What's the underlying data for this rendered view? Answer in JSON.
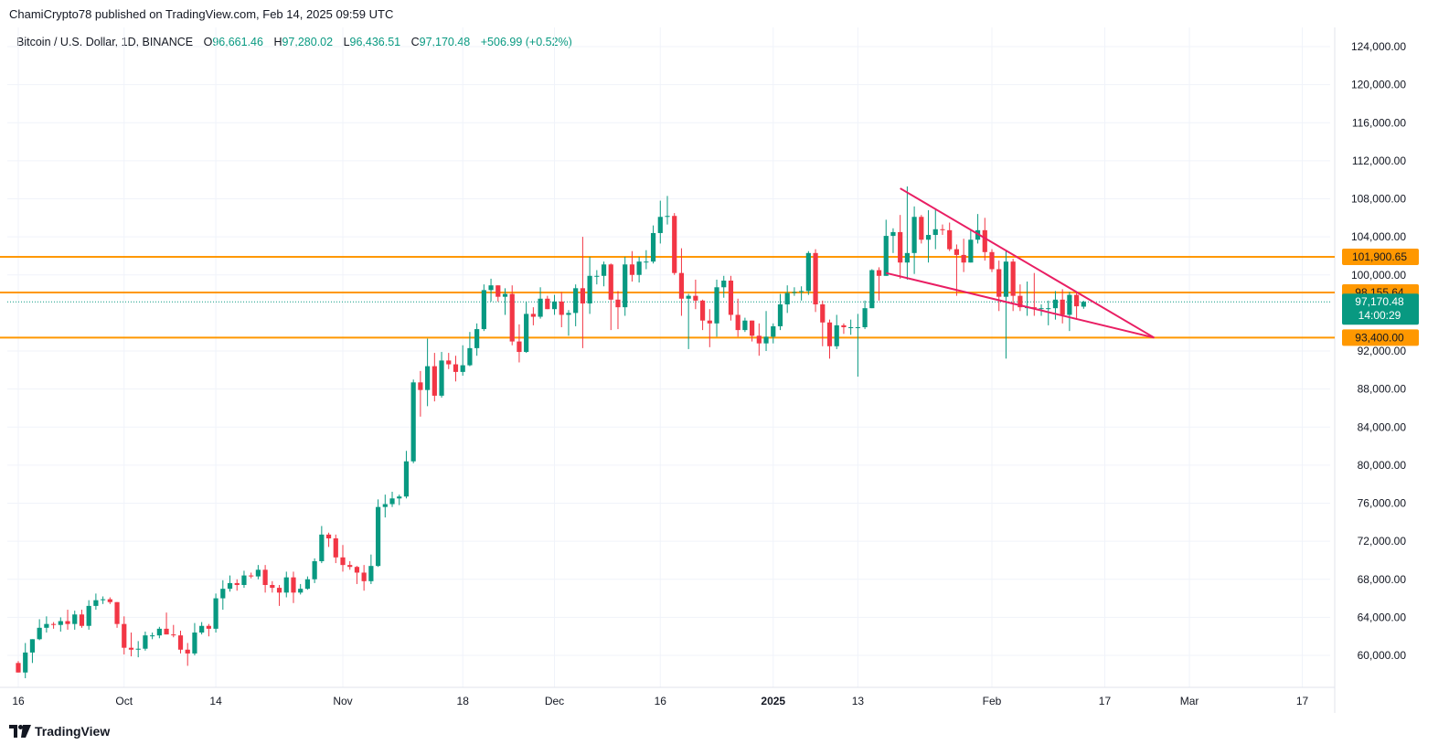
{
  "header": {
    "text": "ChamiCrypto78 published on TradingView.com, Feb 14, 2025 09:59 UTC"
  },
  "legend": {
    "symbol": "Bitcoin / U.S. Dollar, 1D, BINANCE",
    "o_label": "O",
    "o_value": "96,661.46",
    "h_label": "H",
    "h_value": "97,280.02",
    "l_label": "L",
    "l_value": "96,436.51",
    "c_label": "C",
    "c_value": "97,170.48",
    "change": "+506.99 (+0.52%)"
  },
  "footer": {
    "brand": "TradingView",
    "logo_icon": "tradingview-logo-icon"
  },
  "colors": {
    "up": "#089981",
    "down": "#f23645",
    "level": "#ff9800",
    "trend": "#e91e63",
    "text": "#131722"
  },
  "chart_data": {
    "type": "candlestick",
    "symbol": "BTCUSD",
    "timeframe": "1D",
    "ylim": [
      57000,
      126000
    ],
    "y_ticks": [
      "124,000.00",
      "120,000.00",
      "116,000.00",
      "112,000.00",
      "108,000.00",
      "104,000.00",
      "100,000.00",
      "92,000.00",
      "88,000.00",
      "84,000.00",
      "80,000.00",
      "76,000.00",
      "72,000.00",
      "68,000.00",
      "64,000.00",
      "60,000.00"
    ],
    "x_ticks": [
      "16",
      "Oct",
      "14",
      "Nov",
      "18",
      "Dec",
      "16",
      "2025",
      "13",
      "Feb",
      "17",
      "Mar",
      "17"
    ],
    "x_range": [
      "2024-09-16",
      "2025-03-19"
    ],
    "date_x_ticks": [
      "2024-09-16",
      "2024-10-01",
      "2024-10-14",
      "2024-11-01",
      "2024-11-18",
      "2024-12-01",
      "2024-12-16",
      "2025-01-01",
      "2025-01-13",
      "2025-02-01",
      "2025-02-17",
      "2025-03-01",
      "2025-03-17"
    ],
    "horizontal_levels": [
      {
        "value": 101900.65,
        "label": "101,900.65"
      },
      {
        "value": 98155.64,
        "label": "98,155.64"
      },
      {
        "value": 93400.0,
        "label": "93,400.00"
      }
    ],
    "last_price": {
      "value": 97170.48,
      "label": "97,170.48",
      "countdown": "14:00:29"
    },
    "trendlines": [
      {
        "from": [
          "2025-01-19",
          109100
        ],
        "to": [
          "2025-02-24",
          93400
        ]
      },
      {
        "from": [
          "2025-01-17",
          100200
        ],
        "to": [
          "2025-02-24",
          93400
        ]
      }
    ],
    "candles": [
      [
        "2024-09-16",
        59200,
        59400,
        58200,
        58200
      ],
      [
        "2024-09-17",
        58200,
        61300,
        57600,
        60300
      ],
      [
        "2024-09-18",
        60300,
        61700,
        59200,
        61700
      ],
      [
        "2024-09-19",
        61700,
        63800,
        61600,
        62900
      ],
      [
        "2024-09-20",
        62900,
        64100,
        62400,
        63300
      ],
      [
        "2024-09-21",
        63300,
        63500,
        62800,
        63200
      ],
      [
        "2024-09-22",
        63200,
        64000,
        62500,
        63600
      ],
      [
        "2024-09-23",
        63600,
        64800,
        62700,
        63300
      ],
      [
        "2024-09-24",
        63300,
        64700,
        62700,
        64300
      ],
      [
        "2024-09-25",
        64300,
        64800,
        62900,
        63100
      ],
      [
        "2024-09-26",
        63100,
        65800,
        62700,
        65200
      ],
      [
        "2024-09-27",
        65200,
        66500,
        64800,
        65800
      ],
      [
        "2024-09-28",
        65800,
        66200,
        65400,
        65900
      ],
      [
        "2024-09-29",
        65900,
        66100,
        65400,
        65600
      ],
      [
        "2024-09-30",
        65600,
        65600,
        62900,
        63300
      ],
      [
        "2024-10-01",
        63300,
        64100,
        60100,
        60800
      ],
      [
        "2024-10-02",
        60800,
        62400,
        59900,
        60600
      ],
      [
        "2024-10-03",
        60600,
        61500,
        59800,
        60700
      ],
      [
        "2024-10-04",
        60700,
        62500,
        60500,
        62100
      ],
      [
        "2024-10-05",
        62100,
        62400,
        61700,
        62100
      ],
      [
        "2024-10-06",
        62100,
        63000,
        61800,
        62800
      ],
      [
        "2024-10-07",
        62800,
        64500,
        62200,
        62200
      ],
      [
        "2024-10-08",
        62200,
        63200,
        61900,
        62100
      ],
      [
        "2024-10-09",
        62100,
        62600,
        60200,
        60600
      ],
      [
        "2024-10-10",
        60600,
        61300,
        58900,
        60200
      ],
      [
        "2024-10-11",
        60200,
        63400,
        60000,
        62400
      ],
      [
        "2024-10-12",
        62400,
        63500,
        62200,
        63100
      ],
      [
        "2024-10-13",
        63100,
        63300,
        62000,
        62800
      ],
      [
        "2024-10-14",
        62800,
        66500,
        62400,
        66000
      ],
      [
        "2024-10-15",
        66000,
        67900,
        64800,
        67000
      ],
      [
        "2024-10-16",
        67000,
        68400,
        66700,
        67600
      ],
      [
        "2024-10-17",
        67600,
        68000,
        66800,
        67400
      ],
      [
        "2024-10-18",
        67400,
        68900,
        67100,
        68400
      ],
      [
        "2024-10-19",
        68400,
        68700,
        68100,
        68300
      ],
      [
        "2024-10-20",
        68300,
        69500,
        68000,
        69000
      ],
      [
        "2024-10-21",
        69000,
        69500,
        66600,
        67400
      ],
      [
        "2024-10-22",
        67400,
        67800,
        66600,
        67100
      ],
      [
        "2024-10-23",
        67100,
        67400,
        65200,
        66600
      ],
      [
        "2024-10-24",
        66600,
        68800,
        66100,
        68200
      ],
      [
        "2024-10-25",
        68200,
        68800,
        65500,
        66600
      ],
      [
        "2024-10-26",
        66600,
        67500,
        66400,
        67000
      ],
      [
        "2024-10-27",
        67000,
        68300,
        66900,
        68000
      ],
      [
        "2024-10-28",
        68000,
        70200,
        67600,
        69900
      ],
      [
        "2024-10-29",
        69900,
        73600,
        69700,
        72700
      ],
      [
        "2024-10-30",
        72700,
        72900,
        71400,
        72300
      ],
      [
        "2024-10-31",
        72300,
        72700,
        69700,
        70300
      ],
      [
        "2024-11-01",
        70300,
        71600,
        68800,
        69500
      ],
      [
        "2024-11-02",
        69500,
        69900,
        69000,
        69300
      ],
      [
        "2024-11-03",
        69300,
        69400,
        67500,
        68700
      ],
      [
        "2024-11-04",
        68700,
        69500,
        66800,
        67800
      ],
      [
        "2024-11-05",
        67800,
        70600,
        67500,
        69400
      ],
      [
        "2024-11-06",
        69400,
        76400,
        69300,
        75600
      ],
      [
        "2024-11-07",
        75600,
        76900,
        74500,
        75900
      ],
      [
        "2024-11-08",
        75900,
        77200,
        75600,
        76500
      ],
      [
        "2024-11-09",
        76500,
        76900,
        75800,
        76700
      ],
      [
        "2024-11-10",
        76700,
        81500,
        76500,
        80400
      ],
      [
        "2024-11-11",
        80400,
        89000,
        80200,
        88700
      ],
      [
        "2024-11-12",
        88700,
        89900,
        85100,
        87900
      ],
      [
        "2024-11-13",
        87900,
        93300,
        86200,
        90400
      ],
      [
        "2024-11-14",
        90400,
        91800,
        86700,
        87300
      ],
      [
        "2024-11-15",
        87300,
        91900,
        87100,
        91000
      ],
      [
        "2024-11-16",
        91000,
        91800,
        90100,
        90600
      ],
      [
        "2024-11-17",
        90600,
        91500,
        88800,
        89800
      ],
      [
        "2024-11-18",
        89800,
        92600,
        89400,
        90500
      ],
      [
        "2024-11-19",
        90500,
        94000,
        90400,
        92300
      ],
      [
        "2024-11-20",
        92300,
        94900,
        91500,
        94300
      ],
      [
        "2024-11-21",
        94300,
        99000,
        94100,
        98400
      ],
      [
        "2024-11-22",
        98400,
        99600,
        97200,
        98900
      ],
      [
        "2024-11-23",
        98900,
        98900,
        97200,
        97700
      ],
      [
        "2024-11-24",
        97700,
        98600,
        95800,
        98000
      ],
      [
        "2024-11-25",
        98000,
        98900,
        92600,
        93000
      ],
      [
        "2024-11-26",
        93000,
        94800,
        90800,
        91900
      ],
      [
        "2024-11-27",
        91900,
        97200,
        91800,
        95900
      ],
      [
        "2024-11-28",
        95900,
        96600,
        94700,
        95600
      ],
      [
        "2024-11-29",
        95600,
        98700,
        95400,
        97500
      ],
      [
        "2024-11-30",
        97500,
        97800,
        96400,
        96400
      ],
      [
        "2024-12-01",
        96400,
        97900,
        95800,
        97200
      ],
      [
        "2024-12-02",
        97200,
        98200,
        94500,
        95800
      ],
      [
        "2024-12-03",
        95800,
        96300,
        93600,
        96000
      ],
      [
        "2024-12-04",
        96000,
        99000,
        94600,
        98600
      ],
      [
        "2024-12-05",
        98600,
        104000,
        92300,
        97000
      ],
      [
        "2024-12-06",
        97000,
        101900,
        95900,
        99900
      ],
      [
        "2024-12-07",
        99900,
        100500,
        99000,
        99900
      ],
      [
        "2024-12-08",
        99900,
        101400,
        98800,
        101100
      ],
      [
        "2024-12-09",
        101100,
        101200,
        94200,
        97400
      ],
      [
        "2024-12-10",
        97400,
        98300,
        94300,
        96600
      ],
      [
        "2024-12-11",
        96600,
        101900,
        95700,
        101100
      ],
      [
        "2024-12-12",
        101100,
        102500,
        99300,
        100000
      ],
      [
        "2024-12-13",
        100000,
        101900,
        99200,
        101400
      ],
      [
        "2024-12-14",
        101400,
        102600,
        100600,
        101400
      ],
      [
        "2024-12-15",
        101400,
        105200,
        101200,
        104400
      ],
      [
        "2024-12-16",
        104400,
        107800,
        103300,
        106100
      ],
      [
        "2024-12-17",
        106100,
        108300,
        105300,
        106200
      ],
      [
        "2024-12-18",
        106200,
        106500,
        100000,
        100200
      ],
      [
        "2024-12-19",
        100200,
        102800,
        95700,
        97500
      ],
      [
        "2024-12-20",
        97500,
        98000,
        92200,
        97800
      ],
      [
        "2024-12-21",
        97800,
        99500,
        96400,
        97300
      ],
      [
        "2024-12-22",
        97300,
        97400,
        94200,
        95200
      ],
      [
        "2024-12-23",
        95200,
        96400,
        92400,
        94900
      ],
      [
        "2024-12-24",
        94900,
        99500,
        93500,
        98700
      ],
      [
        "2024-12-25",
        98700,
        99900,
        97600,
        99400
      ],
      [
        "2024-12-26",
        99400,
        99900,
        95200,
        95800
      ],
      [
        "2024-12-27",
        95800,
        97500,
        93500,
        94200
      ],
      [
        "2024-12-28",
        94200,
        95500,
        94000,
        95200
      ],
      [
        "2024-12-29",
        95200,
        95200,
        93000,
        93600
      ],
      [
        "2024-12-30",
        93600,
        94900,
        91500,
        92800
      ],
      [
        "2024-12-31",
        92800,
        96200,
        92000,
        93500
      ],
      [
        "2025-01-01",
        93500,
        94900,
        92800,
        94600
      ],
      [
        "2025-01-02",
        94600,
        98000,
        94200,
        96900
      ],
      [
        "2025-01-03",
        96900,
        98900,
        96000,
        98100
      ],
      [
        "2025-01-04",
        98100,
        98700,
        97800,
        98200
      ],
      [
        "2025-01-05",
        98200,
        98800,
        97300,
        98300
      ],
      [
        "2025-01-06",
        98300,
        102500,
        97900,
        102300
      ],
      [
        "2025-01-07",
        102300,
        102700,
        96100,
        96900
      ],
      [
        "2025-01-08",
        96900,
        97300,
        92500,
        95000
      ],
      [
        "2025-01-09",
        95000,
        95300,
        91200,
        92500
      ],
      [
        "2025-01-10",
        92500,
        95800,
        92200,
        94700
      ],
      [
        "2025-01-11",
        94700,
        94900,
        93800,
        94500
      ],
      [
        "2025-01-12",
        94500,
        95300,
        93700,
        94500
      ],
      [
        "2025-01-13",
        94500,
        95900,
        89300,
        94500
      ],
      [
        "2025-01-14",
        94500,
        97300,
        94300,
        96500
      ],
      [
        "2025-01-15",
        96500,
        100600,
        96500,
        100500
      ],
      [
        "2025-01-16",
        100500,
        100800,
        97300,
        99900
      ],
      [
        "2025-01-17",
        99900,
        105800,
        99900,
        104100
      ],
      [
        "2025-01-18",
        104100,
        104900,
        102300,
        104500
      ],
      [
        "2025-01-19",
        104500,
        106300,
        99600,
        101300
      ],
      [
        "2025-01-20",
        101300,
        109300,
        99500,
        102300
      ],
      [
        "2025-01-21",
        102300,
        107200,
        100100,
        106100
      ],
      [
        "2025-01-22",
        106100,
        106300,
        103300,
        103700
      ],
      [
        "2025-01-23",
        103700,
        106800,
        101300,
        104200
      ],
      [
        "2025-01-24",
        104200,
        107000,
        102700,
        104800
      ],
      [
        "2025-01-25",
        104800,
        105300,
        104200,
        104700
      ],
      [
        "2025-01-26",
        104700,
        105500,
        102500,
        102700
      ],
      [
        "2025-01-27",
        102700,
        103200,
        97800,
        102100
      ],
      [
        "2025-01-28",
        102100,
        103800,
        100300,
        101300
      ],
      [
        "2025-01-29",
        101300,
        104800,
        101300,
        103700
      ],
      [
        "2025-01-30",
        103700,
        106400,
        103300,
        104700
      ],
      [
        "2025-01-31",
        104700,
        106000,
        101500,
        102400
      ],
      [
        "2025-02-01",
        102400,
        102700,
        100300,
        100600
      ],
      [
        "2025-02-02",
        100600,
        101500,
        96200,
        97700
      ],
      [
        "2025-02-03",
        97700,
        102500,
        91200,
        101400
      ],
      [
        "2025-02-04",
        101400,
        101700,
        96200,
        97800
      ],
      [
        "2025-02-05",
        97800,
        99000,
        96200,
        96600
      ],
      [
        "2025-02-06",
        96600,
        99300,
        95700,
        96600
      ],
      [
        "2025-02-07",
        96600,
        100200,
        95700,
        96500
      ],
      [
        "2025-02-08",
        96500,
        96900,
        95700,
        96500
      ],
      [
        "2025-02-09",
        96500,
        97300,
        94700,
        96500
      ],
      [
        "2025-02-10",
        96500,
        98300,
        95300,
        97400
      ],
      [
        "2025-02-11",
        97400,
        98500,
        94900,
        95800
      ],
      [
        "2025-02-12",
        95800,
        98200,
        94100,
        97900
      ],
      [
        "2025-02-13",
        97900,
        98100,
        95300,
        96700
      ],
      [
        "2025-02-14",
        96661.46,
        97280.02,
        96436.51,
        97170.48
      ]
    ]
  }
}
